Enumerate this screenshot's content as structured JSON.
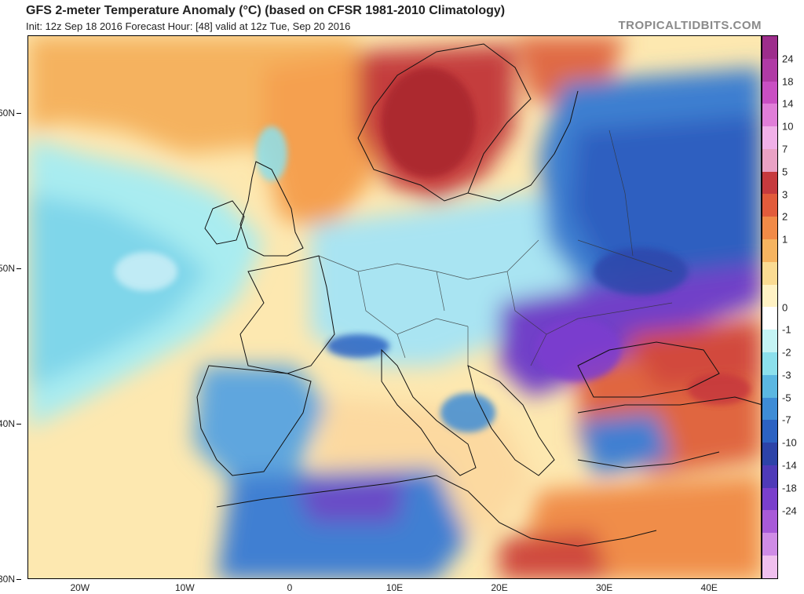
{
  "header": {
    "title": "GFS 2-meter Temperature Anomaly (°C) (based on CFSR 1981-2010 Climatology)",
    "subtitle": "Init: 12z Sep 18 2016   Forecast Hour: [48]   valid at 12z Tue, Sep 20 2016",
    "source": "TROPICALTIDBITS.COM"
  },
  "map": {
    "region": "Europe",
    "lat_range": [
      30,
      65
    ],
    "lon_range": [
      -25,
      45
    ],
    "lat_labels": [
      "60N",
      "50N",
      "40N",
      "30N"
    ],
    "lon_labels": [
      "20W",
      "10W",
      "0",
      "10E",
      "20E",
      "30E",
      "40E"
    ]
  },
  "colorbar": {
    "labels": [
      "24",
      "18",
      "14",
      "10",
      "7",
      "5",
      "3",
      "2",
      "1",
      "0",
      "-1",
      "-2",
      "-3",
      "-5",
      "-7",
      "-10",
      "-14",
      "-18",
      "-24"
    ],
    "colors": [
      "#9d2d8c",
      "#b03aa5",
      "#c94fc3",
      "#e07ed8",
      "#f0b0e8",
      "#e9a2c4",
      "#c63a3e",
      "#e25b3b",
      "#f18a47",
      "#f6b460",
      "#fadb92",
      "#fff2c4",
      "#ffffff",
      "#c4f4f4",
      "#8ce0ec",
      "#5bb7e1",
      "#3e8cd6",
      "#2c62c2",
      "#2d43a8",
      "#4f3ab8",
      "#7a3fcc",
      "#a85ad8",
      "#cf8ce6",
      "#f0c0ee"
    ]
  }
}
